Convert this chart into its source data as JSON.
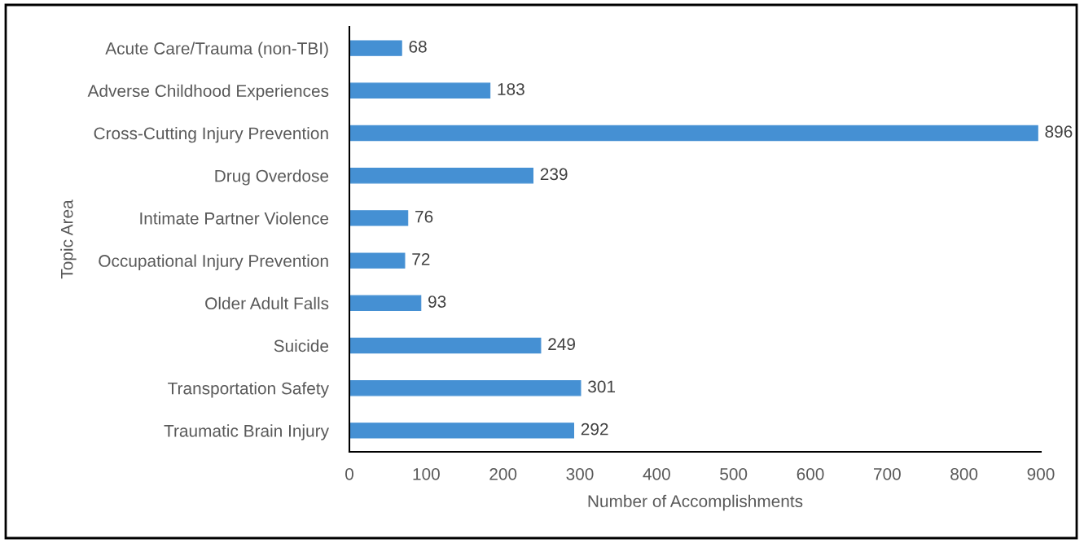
{
  "chart_data": {
    "type": "bar",
    "orientation": "horizontal",
    "categories": [
      "Acute Care/Trauma (non-TBI)",
      "Adverse Childhood Experiences",
      "Cross-Cutting Injury Prevention",
      "Drug Overdose",
      "Intimate Partner Violence",
      "Occupational Injury Prevention",
      "Older Adult Falls",
      "Suicide",
      "Transportation Safety",
      "Traumatic Brain Injury"
    ],
    "values": [
      68,
      183,
      896,
      239,
      76,
      72,
      93,
      249,
      301,
      292
    ],
    "color": "#4590d3",
    "xlim": [
      0,
      900
    ],
    "xticks": [
      0,
      100,
      200,
      300,
      400,
      500,
      600,
      700,
      800,
      900
    ],
    "xlabel": "Number of Accomplishments",
    "ylabel": "Topic Area",
    "data_labels": true
  }
}
